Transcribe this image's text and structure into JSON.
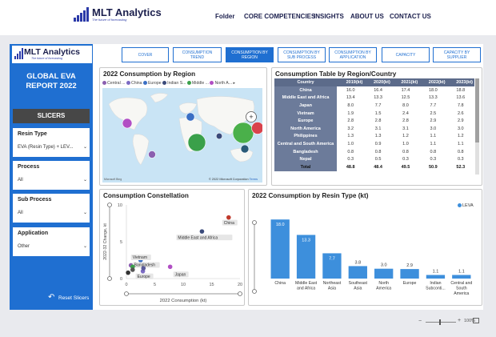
{
  "header": {
    "brand": "MLT Analytics",
    "tagline": "The future of forecasting",
    "nav": [
      "Folder",
      "CORE COMPETENCIES",
      "INSIGHTS",
      "ABOUT US",
      "CONTACT US"
    ]
  },
  "sidebar": {
    "brand": "MLT Analytics",
    "tagline": "The future of forecasting",
    "title_line1": "GLOBAL EVA",
    "title_line2": "REPORT 2022",
    "slicers_label": "SLICERS",
    "filters": [
      {
        "label": "Resin Type",
        "value": "EVA (Resin Type) + LEV..."
      },
      {
        "label": "Process",
        "value": "All"
      },
      {
        "label": "Sub Process",
        "value": "All"
      },
      {
        "label": "Application",
        "value": "Other"
      }
    ],
    "reset_label": "Reset Slicers"
  },
  "tabs": [
    {
      "label": "COVER",
      "active": false
    },
    {
      "label": "CONSUMPTION TREND",
      "active": false
    },
    {
      "label": "CONSUMPTION BY REGION",
      "active": true
    },
    {
      "label": "CONSUMPTION BY SUB PROCESS",
      "active": false
    },
    {
      "label": "CONSUMPTION BY APPLICATION",
      "active": false
    },
    {
      "label": "CAPACITY",
      "active": false
    },
    {
      "label": "CAPACITY BY SUPPLIER",
      "active": false
    }
  ],
  "map_panel": {
    "title": "2022 Consumption by Region",
    "legend": [
      {
        "name": "Central ...",
        "color": "#8b5fb0"
      },
      {
        "name": "China",
        "color": "#7c6bc4"
      },
      {
        "name": "Europe",
        "color": "#3a6fc4"
      },
      {
        "name": "Indian S...",
        "color": "#3a4a7a"
      },
      {
        "name": "Middle ...",
        "color": "#3aa04a"
      },
      {
        "name": "North A...",
        "color": "#b14fc4"
      }
    ],
    "copyright": "© 2022 Microsoft Corporation",
    "terms": "Terms",
    "bing": "Microsoft Bing"
  },
  "table_panel": {
    "title": "Consumption Table by Region/Country",
    "columns": [
      "Country",
      "2019(kt)",
      "2020(kt)",
      "2021(kt)",
      "2022(kt)",
      "2023(kt)"
    ],
    "rows": [
      [
        "China",
        "16.0",
        "16.4",
        "17.4",
        "18.0",
        "18.8"
      ],
      [
        "Middle East and Africa",
        "13.4",
        "13.3",
        "12.5",
        "13.3",
        "13.6"
      ],
      [
        "Japan",
        "8.0",
        "7.7",
        "8.0",
        "7.7",
        "7.8"
      ],
      [
        "Vietnam",
        "1.9",
        "1.5",
        "2.4",
        "2.5",
        "2.6"
      ],
      [
        "Europe",
        "2.8",
        "2.8",
        "2.8",
        "2.9",
        "2.9"
      ],
      [
        "North America",
        "3.2",
        "3.1",
        "3.1",
        "3.0",
        "3.0"
      ],
      [
        "Philippines",
        "1.3",
        "1.3",
        "1.2",
        "1.1",
        "1.2"
      ],
      [
        "Central and South America",
        "1.0",
        "0.9",
        "1.0",
        "1.1",
        "1.1"
      ],
      [
        "Bangladesh",
        "0.8",
        "0.8",
        "0.8",
        "0.8",
        "0.8"
      ],
      [
        "Nepal",
        "0.3",
        "0.5",
        "0.3",
        "0.3",
        "0.3"
      ]
    ],
    "total": [
      "Total",
      "48.8",
      "48.4",
      "49.5",
      "50.9",
      "52.3"
    ]
  },
  "scatter_panel": {
    "title": "Consumption Constellation",
    "chart_data": {
      "type": "scatter",
      "xlabel": "2022 Consumption (kt)",
      "ylabel": "2022-32 Change, kt",
      "xlim": [
        0,
        20
      ],
      "ylim": [
        0,
        10
      ],
      "xticks": [
        "0",
        "5",
        "10",
        "15",
        "20"
      ],
      "yticks": [
        "0",
        "5",
        "10"
      ],
      "points": [
        {
          "label": "China",
          "x": 18.0,
          "y": 8.3,
          "color": "#c0392b"
        },
        {
          "label": "Middle East and Africa",
          "x": 13.3,
          "y": 6.4,
          "color": "#3a4a7a"
        },
        {
          "label": "Japan",
          "x": 7.7,
          "y": 1.6,
          "color": "#b14fc4"
        },
        {
          "label": "Vietnam",
          "x": 2.5,
          "y": 2.5,
          "color": "#3a6fc4"
        },
        {
          "label": "Bangladesh",
          "x": 0.8,
          "y": 1.8,
          "color": "#8b5fb0"
        },
        {
          "label": "Europe",
          "x": 2.9,
          "y": 1.0,
          "color": "#7c6bc4"
        },
        {
          "label": "",
          "x": 1.1,
          "y": 1.6,
          "color": "#3aa04a"
        },
        {
          "label": "",
          "x": 1.1,
          "y": 1.2,
          "color": "#555555"
        },
        {
          "label": "",
          "x": 0.3,
          "y": 0.8,
          "color": "#333333"
        },
        {
          "label": "",
          "x": 3.0,
          "y": 1.4,
          "color": "#5a5a9a"
        }
      ]
    }
  },
  "bar_panel": {
    "title": "2022 Consumption by Resin Type (kt)",
    "legend": "LEVA",
    "chart_data": {
      "type": "bar",
      "categories": [
        "China",
        "Middle East and Africa",
        "Northeast Asia",
        "Southeast Asia",
        "North America",
        "Europe",
        "Indian Subconti...",
        "Central and South America"
      ],
      "series": [
        {
          "name": "LEVA",
          "values": [
            18.0,
            13.3,
            7.7,
            3.8,
            3.0,
            2.9,
            1.1,
            1.1
          ]
        }
      ],
      "value_labels": [
        "18.0",
        "13.3",
        "7.7",
        "3.8",
        "3.0",
        "2.9",
        "1.1",
        "1.1"
      ],
      "ylim": [
        0,
        20
      ],
      "color": "#3d8fdc"
    }
  },
  "statusbar": {
    "zoom": "100%"
  }
}
